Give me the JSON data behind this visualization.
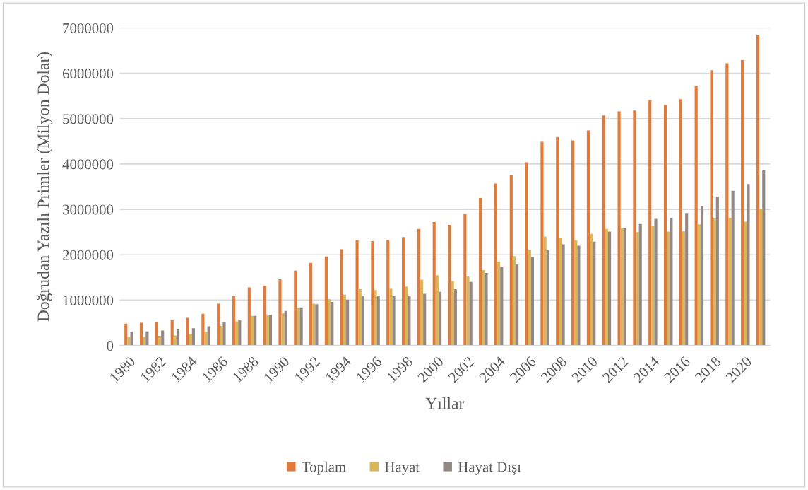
{
  "chart_data": {
    "type": "bar",
    "xlabel": "Yıllar",
    "ylabel": "Doğrudan Yazılı Primler (Milyon Dolar)",
    "categories": [
      "1980",
      null,
      "1982",
      null,
      "1984",
      null,
      "1986",
      null,
      "1988",
      null,
      "1990",
      null,
      "1992",
      null,
      "1994",
      null,
      "1996",
      null,
      "1998",
      null,
      "2000",
      null,
      "2002",
      null,
      "2004",
      null,
      "2006",
      null,
      "2008",
      null,
      "2010",
      null,
      "2012",
      null,
      "2014",
      null,
      "2016",
      null,
      "2018",
      null,
      "2020",
      null
    ],
    "series": [
      {
        "name": "Toplam",
        "color": "#e07b3c",
        "values": [
          480000,
          500000,
          520000,
          560000,
          610000,
          700000,
          920000,
          1090000,
          1280000,
          1320000,
          1460000,
          1650000,
          1820000,
          1960000,
          2120000,
          2320000,
          2300000,
          2330000,
          2390000,
          2570000,
          2720000,
          2660000,
          2900000,
          3250000,
          3570000,
          3760000,
          4040000,
          4490000,
          4590000,
          4520000,
          4740000,
          5070000,
          5160000,
          5180000,
          5410000,
          5300000,
          5430000,
          5730000,
          6070000,
          6220000,
          6290000,
          6850000
        ]
      },
      {
        "name": "Hayat",
        "color": "#dab55a",
        "values": [
          190000,
          190000,
          210000,
          220000,
          250000,
          300000,
          430000,
          530000,
          650000,
          660000,
          710000,
          830000,
          920000,
          1020000,
          1120000,
          1240000,
          1220000,
          1250000,
          1300000,
          1450000,
          1550000,
          1420000,
          1520000,
          1660000,
          1850000,
          1970000,
          2110000,
          2400000,
          2380000,
          2320000,
          2460000,
          2570000,
          2590000,
          2500000,
          2630000,
          2510000,
          2520000,
          2670000,
          2800000,
          2810000,
          2730000,
          3000000
        ]
      },
      {
        "name": "Hayat Dışı",
        "color": "#928886",
        "values": [
          300000,
          310000,
          330000,
          350000,
          380000,
          420000,
          510000,
          570000,
          650000,
          680000,
          760000,
          840000,
          910000,
          960000,
          1010000,
          1090000,
          1100000,
          1090000,
          1100000,
          1140000,
          1180000,
          1240000,
          1400000,
          1600000,
          1730000,
          1800000,
          1950000,
          2100000,
          2230000,
          2200000,
          2290000,
          2510000,
          2580000,
          2680000,
          2790000,
          2810000,
          2920000,
          3070000,
          3280000,
          3410000,
          3560000,
          3860000
        ]
      }
    ],
    "ylim": [
      0,
      7000000
    ],
    "yticks": [
      0,
      1000000,
      2000000,
      3000000,
      4000000,
      5000000,
      6000000,
      7000000
    ],
    "grid": "y",
    "legend": "bottom"
  }
}
